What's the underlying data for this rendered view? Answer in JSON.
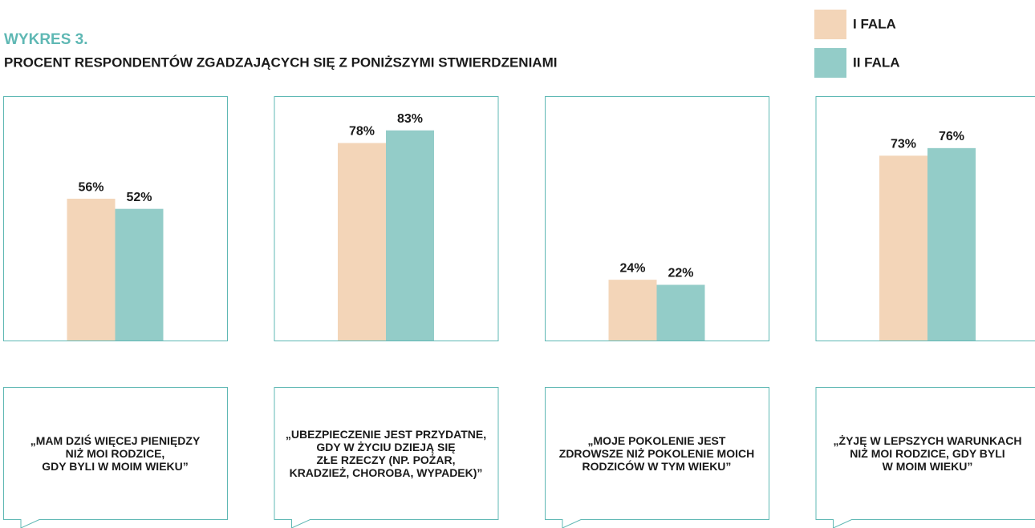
{
  "chart_data": {
    "type": "grouped-bar",
    "subtitle": "WYKRES 3.",
    "title": "PROCENT RESPONDENTÓW ZGADZAJĄCYCH SIĘ Z PONIŻSZYMI STWIERDZENIAMI",
    "categories": [
      "„MAM DZIŚ WIĘCEJ PIENIĘDZY\nNIŻ MOI RODZICE,\nGDY BYLI W MOIM WIEKU”",
      "„UBEZPIECZENIE JEST PRZYDATNE,\nGDY W ŻYCIU DZIEJĄ SIĘ\nZŁE RZECZY (NP. POŻAR,\nKRADZIEŻ, CHOROBA, WYPADEK)”",
      "„MOJE POKOLENIE JEST\nZDROWSZE NIŻ POKOLENIE MOICH\nRODZICÓW W TYM WIEKU”",
      "„ŻYJĘ W LEPSZYCH WARUNKACH\nNIŻ MOI RODZICE, GDY BYLI\nW MOIM WIEKU”"
    ],
    "series": [
      {
        "name": "I FALA",
        "color": "#f3d5b8",
        "values": [
          56,
          78,
          24,
          73
        ],
        "value_labels": [
          "56%",
          "78%",
          "24%",
          "73%"
        ]
      },
      {
        "name": "II FALA",
        "color": "#93ccc8",
        "values": [
          52,
          83,
          22,
          76
        ],
        "value_labels": [
          "52%",
          "83%",
          "22%",
          "76%"
        ]
      }
    ],
    "ylim": [
      0,
      100
    ]
  }
}
